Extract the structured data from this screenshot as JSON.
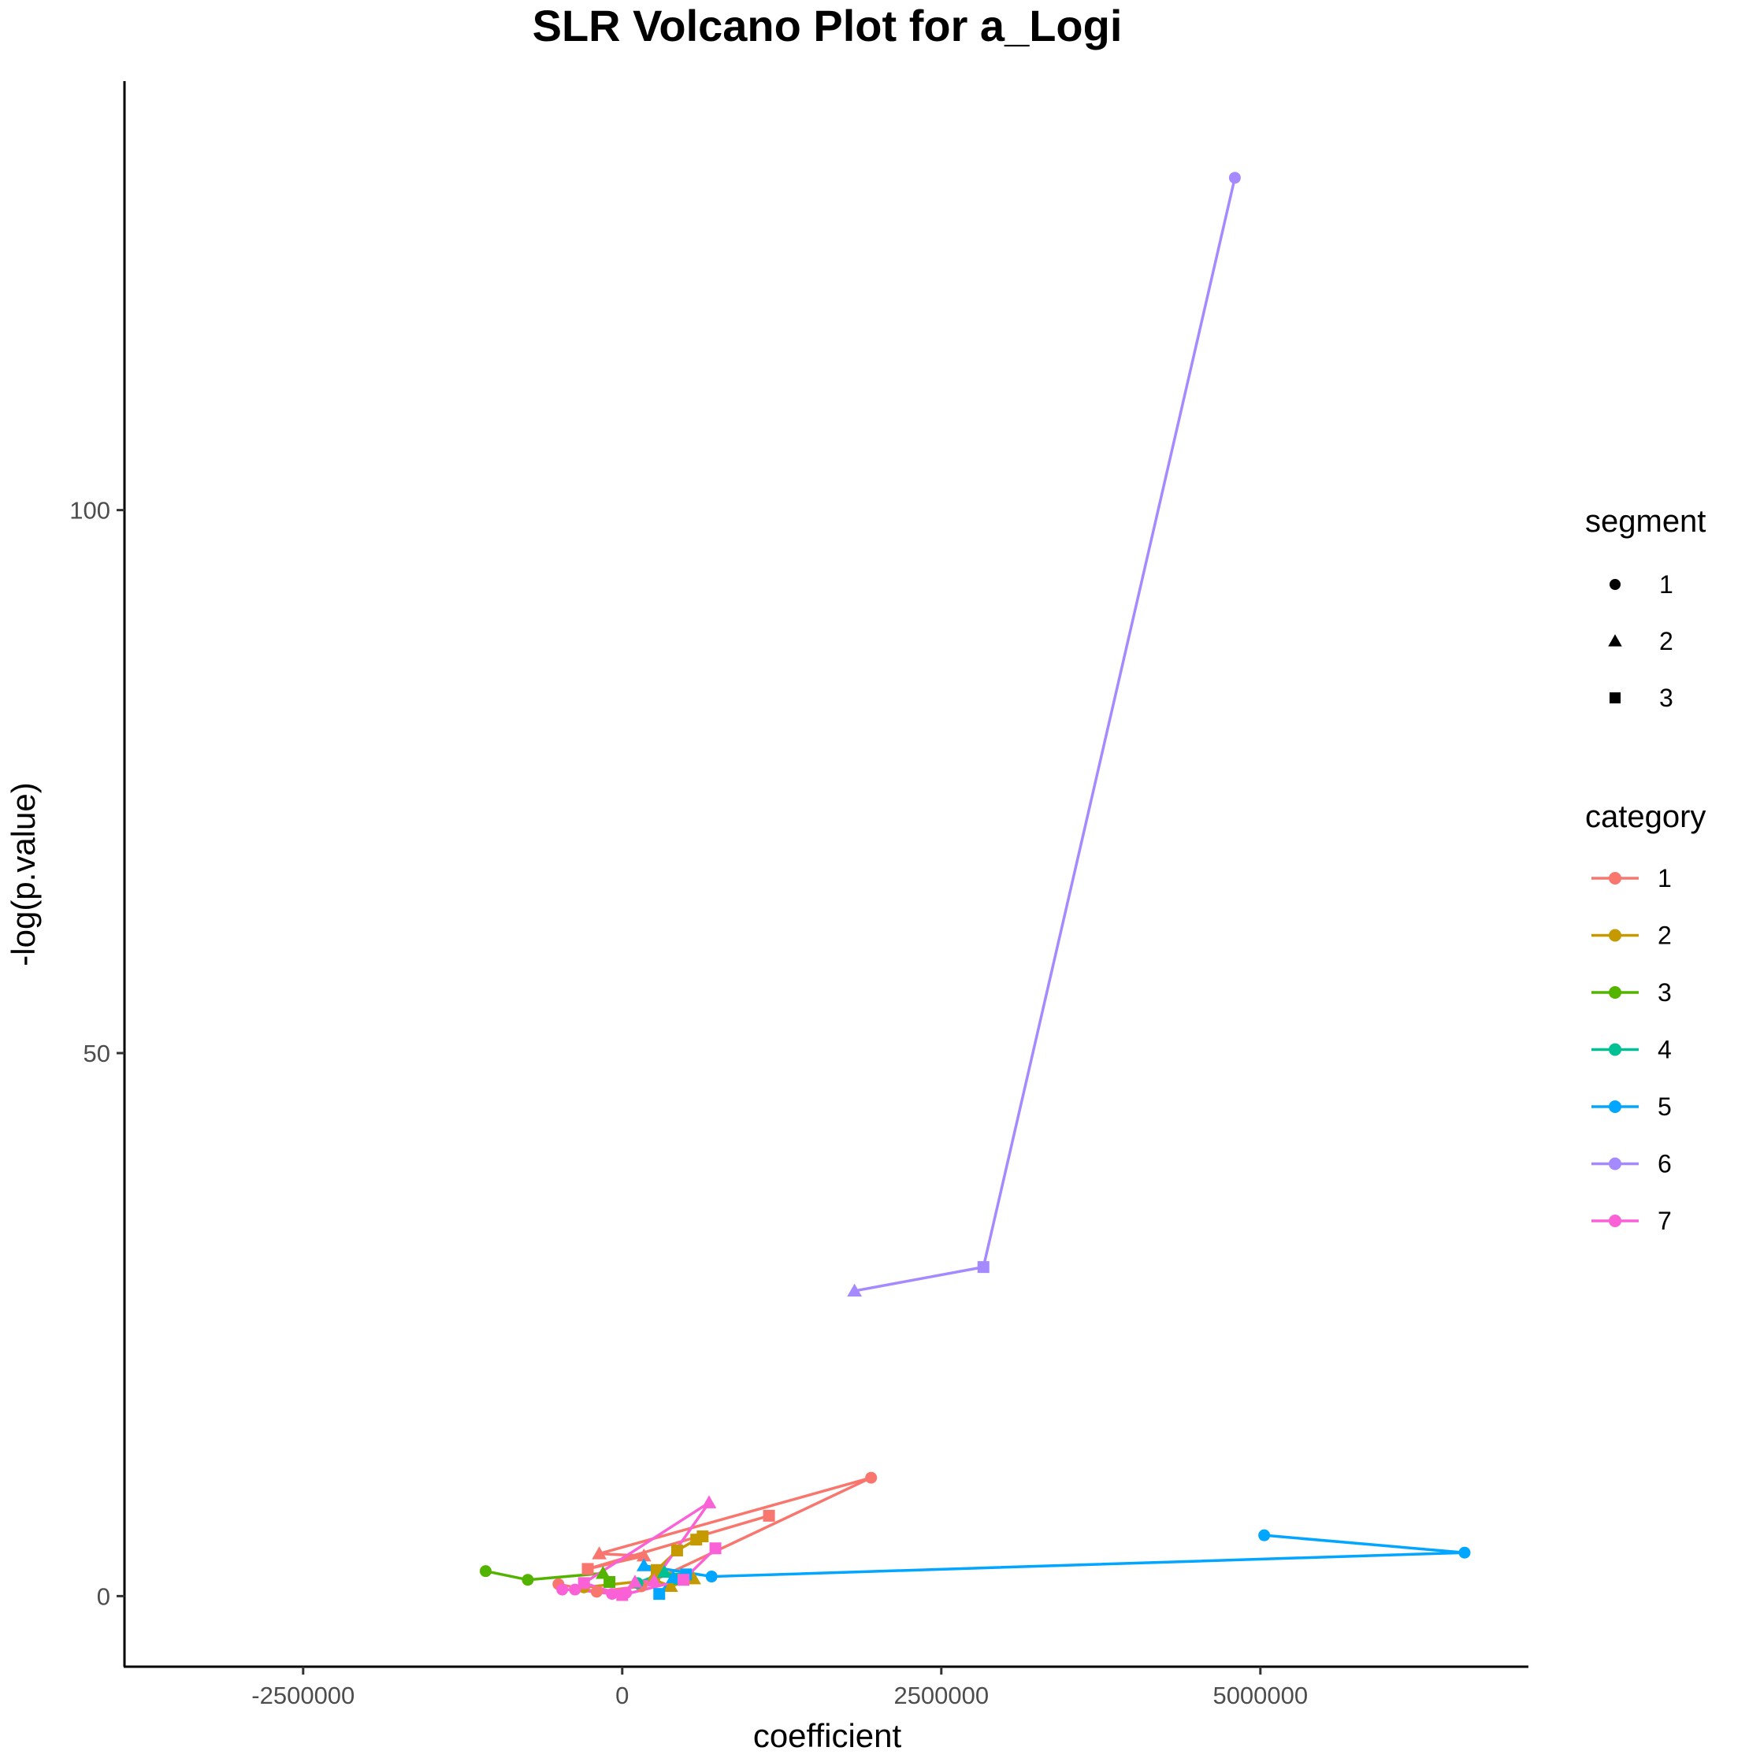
{
  "chart_data": {
    "type": "line",
    "title": "SLR Volcano Plot for a_Logi",
    "xlabel": "coefficient",
    "ylabel": "-log(p.value)",
    "xlim": [
      -3900000,
      7100000
    ],
    "ylim": [
      -6.5,
      139.5
    ],
    "x_ticks": [
      -2500000,
      0,
      2500000,
      5000000
    ],
    "x_tick_labels": [
      "-2500000",
      "0",
      "2500000",
      "5000000"
    ],
    "y_ticks": [
      0,
      50,
      100
    ],
    "y_tick_labels": [
      "0",
      "50",
      "100"
    ],
    "grid": false,
    "legend_position": "right",
    "shape_legend": {
      "title": "segment",
      "items": [
        {
          "label": "1",
          "shape": "circle"
        },
        {
          "label": "2",
          "shape": "triangle"
        },
        {
          "label": "3",
          "shape": "square"
        }
      ]
    },
    "color_legend": {
      "title": "category",
      "items": [
        {
          "label": "1",
          "color": "#F8766D"
        },
        {
          "label": "2",
          "color": "#C49A00"
        },
        {
          "label": "3",
          "color": "#53B400"
        },
        {
          "label": "4",
          "color": "#00C094"
        },
        {
          "label": "5",
          "color": "#00A6FF"
        },
        {
          "label": "6",
          "color": "#A58AFF"
        },
        {
          "label": "7",
          "color": "#FB61D7"
        }
      ]
    },
    "series": [
      {
        "name": "1",
        "color": "#F8766D",
        "points": [
          {
            "x": -500000,
            "y": 1.1,
            "segment": "1"
          },
          {
            "x": -200000,
            "y": 0.4,
            "segment": "1"
          },
          {
            "x": 150000,
            "y": 0.9,
            "segment": "1"
          },
          {
            "x": 1950000,
            "y": 10.9,
            "segment": "1"
          },
          {
            "x": -180000,
            "y": 3.9,
            "segment": "2"
          },
          {
            "x": 170000,
            "y": 3.7,
            "segment": "2"
          },
          {
            "x": -270000,
            "y": 2.5,
            "segment": "3"
          },
          {
            "x": 1150000,
            "y": 7.4,
            "segment": "3"
          }
        ]
      },
      {
        "name": "2",
        "color": "#C49A00",
        "points": [
          {
            "x": -300000,
            "y": 0.8,
            "segment": "1"
          },
          {
            "x": 250000,
            "y": 1.5,
            "segment": "1"
          },
          {
            "x": 380000,
            "y": 0.9,
            "segment": "2"
          },
          {
            "x": 560000,
            "y": 1.6,
            "segment": "2"
          },
          {
            "x": 270000,
            "y": 2.4,
            "segment": "3"
          },
          {
            "x": 430000,
            "y": 4.2,
            "segment": "3"
          },
          {
            "x": 580000,
            "y": 5.2,
            "segment": "3"
          },
          {
            "x": 630000,
            "y": 5.5,
            "segment": "3"
          }
        ]
      },
      {
        "name": "3",
        "color": "#53B400",
        "points": [
          {
            "x": -1070000,
            "y": 2.3,
            "segment": "1"
          },
          {
            "x": -740000,
            "y": 1.5,
            "segment": "1"
          },
          {
            "x": -150000,
            "y": 2.1,
            "segment": "2"
          },
          {
            "x": -100000,
            "y": 1.3,
            "segment": "3"
          }
        ]
      },
      {
        "name": "4",
        "color": "#00C094",
        "points": [
          {
            "x": 120000,
            "y": 1.2,
            "segment": "1"
          },
          {
            "x": 330000,
            "y": 2.2,
            "segment": "2"
          },
          {
            "x": 450000,
            "y": 1.6,
            "segment": "3"
          }
        ]
      },
      {
        "name": "5",
        "color": "#00A6FF",
        "points": [
          {
            "x": 5030000,
            "y": 5.6,
            "segment": "1"
          },
          {
            "x": 6600000,
            "y": 4.0,
            "segment": "1"
          },
          {
            "x": 700000,
            "y": 1.8,
            "segment": "1"
          },
          {
            "x": 170000,
            "y": 2.8,
            "segment": "2"
          },
          {
            "x": 400000,
            "y": 1.7,
            "segment": "2"
          },
          {
            "x": 290000,
            "y": 0.2,
            "segment": "3"
          },
          {
            "x": 500000,
            "y": 2.0,
            "segment": "3"
          }
        ]
      },
      {
        "name": "6",
        "color": "#A58AFF",
        "points": [
          {
            "x": 1820000,
            "y": 28.1,
            "segment": "2"
          },
          {
            "x": 2830000,
            "y": 30.3,
            "segment": "3"
          },
          {
            "x": 4800000,
            "y": 130.6,
            "segment": "1"
          }
        ]
      },
      {
        "name": "7",
        "color": "#FB61D7",
        "points": [
          {
            "x": -470000,
            "y": 0.6,
            "segment": "1"
          },
          {
            "x": -370000,
            "y": 0.6,
            "segment": "1"
          },
          {
            "x": -80000,
            "y": 0.2,
            "segment": "1"
          },
          {
            "x": 30000,
            "y": 0.3,
            "segment": "1"
          },
          {
            "x": 100000,
            "y": 1.3,
            "segment": "2"
          },
          {
            "x": 250000,
            "y": 1.4,
            "segment": "2"
          },
          {
            "x": 680000,
            "y": 8.6,
            "segment": "2"
          },
          {
            "x": -300000,
            "y": 1.2,
            "segment": "3"
          },
          {
            "x": 0,
            "y": 0.1,
            "segment": "3"
          },
          {
            "x": 480000,
            "y": 1.5,
            "segment": "3"
          },
          {
            "x": 730000,
            "y": 4.4,
            "segment": "3"
          }
        ]
      }
    ]
  }
}
